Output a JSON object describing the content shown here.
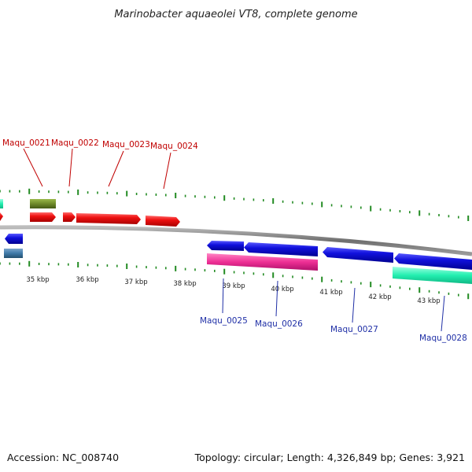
{
  "title": "Marinobacter aquaeolei VT8, complete genome",
  "footer": {
    "accession": "Accession: NC_008740",
    "topology": "Topology: circular; Length: 4,326,849 bp; Genes: 3,921"
  },
  "kbp_ticks": [
    "35 kbp",
    "36 kbp",
    "37 kbp",
    "38 kbp",
    "39 kbp",
    "40 kbp",
    "41 kbp",
    "42 kbp",
    "43 kbp"
  ],
  "top_genes": [
    "Maqu_0021",
    "Maqu_0022",
    "Maqu_0023",
    "Maqu_0024"
  ],
  "bottom_genes": [
    "Maqu_0025",
    "Maqu_0026",
    "Maqu_0027",
    "Maqu_0028"
  ],
  "colors": {
    "forward_cds": "#ee1111",
    "reverse_cds": "#1111dd",
    "olive": "#6e8a2a",
    "steel": "#3f79a8",
    "magenta": "#ee2f95",
    "aqua": "#22efb0",
    "backbone": "#888888",
    "ticks": "#228b22",
    "top_label": "#c00000",
    "bottom_label": "#1f2fa6"
  }
}
